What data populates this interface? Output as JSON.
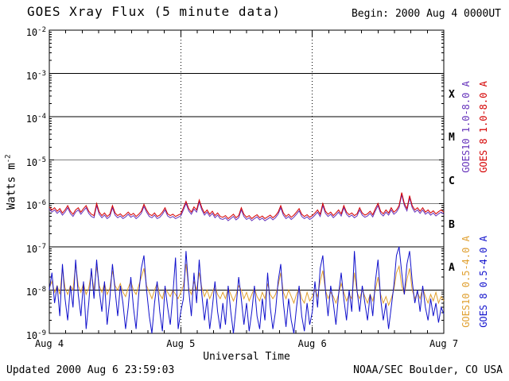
{
  "header": {
    "title": "GOES Xray Flux (5 minute data)",
    "begin_label": "Begin:",
    "begin_value": "2000 Aug 4 0000UT"
  },
  "footer": {
    "updated": "Updated 2000 Aug 6 23:59:03",
    "source": "NOAA/SEC Boulder, CO USA"
  },
  "chart_data": {
    "type": "line",
    "title": "GOES Xray Flux (5 minute data)",
    "xlabel": "Universal Time",
    "ylabel_base": "Watts m",
    "ylabel_exp": "-2",
    "x_range_days": [
      0,
      3
    ],
    "y_log10_range": [
      -9,
      -2
    ],
    "x_ticks": [
      {
        "x": 0,
        "label": "Aug 4"
      },
      {
        "x": 1,
        "label": "Aug 5"
      },
      {
        "x": 2,
        "label": "Aug 6"
      },
      {
        "x": 3,
        "label": "Aug 7"
      }
    ],
    "x_minor_tick_step_days": 0.125,
    "y_tick_exponents": [
      -2,
      -3,
      -4,
      -5,
      -6,
      -7,
      -8,
      -9
    ],
    "grid_decades": [
      -3,
      -4,
      -5,
      -6,
      -7,
      -8
    ],
    "day_boundary_lines": [
      1,
      2
    ],
    "grid_color": "#000000",
    "flare_classes": [
      {
        "label": "X",
        "log10_center": -3.5
      },
      {
        "label": "M",
        "log10_center": -4.5
      },
      {
        "label": "C",
        "log10_center": -5.5
      },
      {
        "label": "B",
        "log10_center": -6.5
      },
      {
        "label": "A",
        "log10_center": -7.5
      }
    ],
    "series": [
      {
        "name": "GOES10 1.0-8.0 A",
        "color": "#6633bb",
        "x_start": 0,
        "x_step": 0.02,
        "log10_flux": [
          -6.13,
          -6.2,
          -6.15,
          -6.23,
          -6.17,
          -6.27,
          -6.2,
          -6.1,
          -6.23,
          -6.3,
          -6.2,
          -6.15,
          -6.25,
          -6.17,
          -6.1,
          -6.23,
          -6.3,
          -6.33,
          -6.05,
          -6.25,
          -6.33,
          -6.27,
          -6.35,
          -6.3,
          -6.1,
          -6.27,
          -6.33,
          -6.29,
          -6.35,
          -6.31,
          -6.25,
          -6.32,
          -6.28,
          -6.35,
          -6.3,
          -6.23,
          -6.07,
          -6.2,
          -6.3,
          -6.33,
          -6.27,
          -6.35,
          -6.32,
          -6.25,
          -6.15,
          -6.29,
          -6.33,
          -6.3,
          -6.35,
          -6.32,
          -6.29,
          -6.15,
          -6.0,
          -6.17,
          -6.25,
          -6.13,
          -6.2,
          -5.97,
          -6.15,
          -6.27,
          -6.2,
          -6.3,
          -6.23,
          -6.33,
          -6.27,
          -6.35,
          -6.37,
          -6.33,
          -6.4,
          -6.35,
          -6.3,
          -6.38,
          -6.33,
          -6.15,
          -6.3,
          -6.37,
          -6.33,
          -6.4,
          -6.35,
          -6.31,
          -6.38,
          -6.34,
          -6.4,
          -6.36,
          -6.32,
          -6.38,
          -6.33,
          -6.25,
          -6.1,
          -6.27,
          -6.35,
          -6.3,
          -6.37,
          -6.32,
          -6.25,
          -6.17,
          -6.3,
          -6.35,
          -6.31,
          -6.37,
          -6.33,
          -6.27,
          -6.2,
          -6.3,
          -6.05,
          -6.23,
          -6.3,
          -6.25,
          -6.33,
          -6.27,
          -6.2,
          -6.29,
          -6.1,
          -6.25,
          -6.31,
          -6.27,
          -6.33,
          -6.29,
          -6.15,
          -6.27,
          -6.32,
          -6.29,
          -6.23,
          -6.31,
          -6.17,
          -6.05,
          -6.23,
          -6.29,
          -6.2,
          -6.27,
          -6.15,
          -6.25,
          -6.2,
          -6.1,
          -5.8,
          -6.05,
          -6.17,
          -5.87,
          -6.1,
          -6.2,
          -6.15,
          -6.23,
          -6.15,
          -6.25,
          -6.2,
          -6.27,
          -6.22,
          -6.29,
          -6.24,
          -6.2,
          -6.25
        ]
      },
      {
        "name": "GOES 8 1.0-8.0 A",
        "color": "#d40000",
        "x_start": 0,
        "x_step": 0.02,
        "log10_flux": [
          -6.08,
          -6.15,
          -6.1,
          -6.18,
          -6.12,
          -6.22,
          -6.15,
          -6.05,
          -6.18,
          -6.25,
          -6.15,
          -6.1,
          -6.2,
          -6.12,
          -6.05,
          -6.18,
          -6.25,
          -6.28,
          -6.0,
          -6.2,
          -6.28,
          -6.22,
          -6.3,
          -6.25,
          -6.05,
          -6.22,
          -6.28,
          -6.24,
          -6.3,
          -6.26,
          -6.2,
          -6.27,
          -6.23,
          -6.3,
          -6.25,
          -6.18,
          -6.02,
          -6.15,
          -6.25,
          -6.28,
          -6.22,
          -6.3,
          -6.27,
          -6.2,
          -6.1,
          -6.24,
          -6.28,
          -6.25,
          -6.3,
          -6.27,
          -6.24,
          -6.1,
          -5.95,
          -6.12,
          -6.2,
          -6.08,
          -6.15,
          -5.92,
          -6.1,
          -6.22,
          -6.15,
          -6.25,
          -6.18,
          -6.28,
          -6.22,
          -6.3,
          -6.32,
          -6.28,
          -6.35,
          -6.3,
          -6.25,
          -6.33,
          -6.28,
          -6.1,
          -6.25,
          -6.32,
          -6.28,
          -6.35,
          -6.3,
          -6.26,
          -6.33,
          -6.29,
          -6.35,
          -6.31,
          -6.27,
          -6.33,
          -6.28,
          -6.2,
          -6.05,
          -6.22,
          -6.3,
          -6.25,
          -6.32,
          -6.27,
          -6.2,
          -6.12,
          -6.25,
          -6.3,
          -6.26,
          -6.32,
          -6.28,
          -6.22,
          -6.15,
          -6.25,
          -6.0,
          -6.18,
          -6.25,
          -6.2,
          -6.28,
          -6.22,
          -6.15,
          -6.24,
          -6.05,
          -6.2,
          -6.26,
          -6.22,
          -6.28,
          -6.24,
          -6.1,
          -6.22,
          -6.27,
          -6.24,
          -6.18,
          -6.26,
          -6.12,
          -6.0,
          -6.18,
          -6.24,
          -6.15,
          -6.22,
          -6.1,
          -6.2,
          -6.15,
          -6.05,
          -5.75,
          -6.0,
          -6.12,
          -5.82,
          -6.05,
          -6.15,
          -6.1,
          -6.18,
          -6.1,
          -6.2,
          -6.15,
          -6.22,
          -6.17,
          -6.24,
          -6.19,
          -6.15,
          -6.2
        ]
      },
      {
        "name": "GOES10 0.5-4.0 A",
        "color": "#e0a030",
        "x_start": 0,
        "x_step": 0.02,
        "log10_flux": [
          -7.95,
          -7.8,
          -8.05,
          -7.9,
          -8.1,
          -7.5,
          -7.95,
          -8.1,
          -7.9,
          -8.0,
          -7.4,
          -7.9,
          -8.05,
          -7.85,
          -8.1,
          -7.95,
          -7.6,
          -8.0,
          -7.45,
          -7.9,
          -8.05,
          -7.85,
          -8.1,
          -7.95,
          -7.55,
          -7.9,
          -8.0,
          -7.85,
          -8.05,
          -8.15,
          -7.95,
          -7.8,
          -8.0,
          -8.1,
          -7.9,
          -7.7,
          -7.5,
          -7.9,
          -8.05,
          -8.2,
          -8.0,
          -7.85,
          -8.1,
          -8.2,
          -7.95,
          -8.05,
          -8.15,
          -8.0,
          -8.1,
          -8.2,
          -8.05,
          -7.9,
          -7.4,
          -7.95,
          -8.1,
          -7.8,
          -8.0,
          -7.6,
          -7.95,
          -8.15,
          -8.0,
          -8.2,
          -8.05,
          -7.9,
          -8.1,
          -8.2,
          -8.05,
          -8.2,
          -7.95,
          -8.1,
          -8.25,
          -8.1,
          -7.9,
          -8.0,
          -8.2,
          -8.05,
          -8.25,
          -8.1,
          -7.95,
          -8.15,
          -8.25,
          -8.05,
          -8.2,
          -7.85,
          -8.1,
          -8.2,
          -8.1,
          -7.9,
          -7.6,
          -8.05,
          -8.2,
          -8.0,
          -8.15,
          -8.3,
          -8.1,
          -7.95,
          -8.2,
          -8.3,
          -8.05,
          -8.25,
          -8.15,
          -8.0,
          -8.15,
          -7.8,
          -7.55,
          -8.0,
          -8.2,
          -8.05,
          -8.15,
          -8.3,
          -8.1,
          -7.85,
          -8.05,
          -8.25,
          -8.1,
          -8.2,
          -7.6,
          -8.05,
          -8.2,
          -8.0,
          -8.15,
          -8.3,
          -8.1,
          -8.25,
          -8.0,
          -7.7,
          -8.1,
          -8.3,
          -8.15,
          -8.35,
          -8.2,
          -8.0,
          -7.6,
          -7.45,
          -7.9,
          -8.1,
          -7.75,
          -7.5,
          -8.0,
          -8.2,
          -8.05,
          -8.2,
          -7.95,
          -8.15,
          -8.3,
          -8.1,
          -8.25,
          -8.05,
          -8.3,
          -8.15,
          -8.25
        ]
      },
      {
        "name": "GOES 8 0.5-4.0 A",
        "color": "#1111cc",
        "x_start": 0,
        "x_step": 0.02,
        "log10_flux": [
          -8.0,
          -7.6,
          -8.3,
          -7.9,
          -8.6,
          -7.4,
          -8.2,
          -8.7,
          -7.9,
          -8.4,
          -7.3,
          -8.1,
          -8.6,
          -7.8,
          -8.9,
          -8.3,
          -7.5,
          -8.2,
          -7.3,
          -8.0,
          -8.5,
          -7.8,
          -8.8,
          -8.2,
          -7.4,
          -8.0,
          -8.6,
          -7.9,
          -8.3,
          -8.9,
          -8.4,
          -7.7,
          -8.4,
          -8.9,
          -8.1,
          -7.5,
          -7.2,
          -8.0,
          -8.6,
          -9.0,
          -8.3,
          -7.8,
          -8.5,
          -8.95,
          -7.9,
          -8.4,
          -8.8,
          -8.1,
          -7.25,
          -8.9,
          -8.5,
          -8.2,
          -7.1,
          -8.0,
          -8.6,
          -7.6,
          -8.3,
          -7.3,
          -8.1,
          -8.7,
          -8.2,
          -8.9,
          -8.4,
          -7.8,
          -8.5,
          -8.9,
          -8.3,
          -8.8,
          -7.9,
          -8.5,
          -9.0,
          -8.4,
          -7.7,
          -8.2,
          -8.8,
          -8.3,
          -8.95,
          -8.5,
          -7.9,
          -8.6,
          -8.9,
          -8.2,
          -8.7,
          -7.6,
          -8.4,
          -8.9,
          -8.5,
          -7.8,
          -7.4,
          -8.3,
          -8.85,
          -8.2,
          -8.7,
          -9.0,
          -8.4,
          -7.9,
          -8.6,
          -8.95,
          -8.3,
          -8.8,
          -8.5,
          -7.8,
          -8.4,
          -7.5,
          -7.2,
          -8.0,
          -8.6,
          -7.9,
          -8.3,
          -8.8,
          -8.1,
          -7.6,
          -8.2,
          -8.7,
          -8.0,
          -8.5,
          -7.1,
          -8.0,
          -8.5,
          -7.9,
          -8.3,
          -8.7,
          -8.1,
          -8.6,
          -7.8,
          -7.3,
          -8.2,
          -8.7,
          -8.3,
          -8.9,
          -8.4,
          -7.9,
          -7.2,
          -7.0,
          -7.6,
          -8.1,
          -7.4,
          -7.1,
          -7.8,
          -8.3,
          -8.0,
          -8.5,
          -7.9,
          -8.4,
          -8.7,
          -8.2,
          -8.6,
          -8.3,
          -8.75,
          -8.4,
          -8.55
        ]
      }
    ]
  }
}
